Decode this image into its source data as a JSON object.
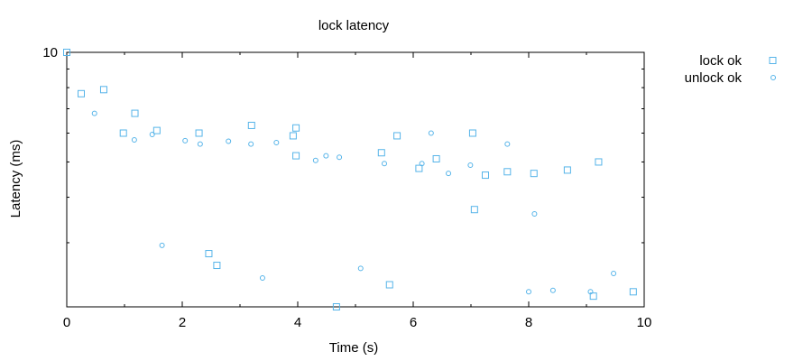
{
  "chart_data": {
    "type": "scatter",
    "title": "lock latency",
    "xlabel": "Time (s)",
    "ylabel": "Latency (ms)",
    "xlim": [
      0,
      10
    ],
    "ylim": [
      0,
      10
    ],
    "y_scale": "log",
    "grid": false,
    "legend_position": "top-right-outside",
    "x_ticks": [
      "0",
      "2",
      "4",
      "6",
      "8",
      "10"
    ],
    "y_ticks": [
      "10"
    ],
    "series": [
      {
        "name": "lock ok",
        "marker": "square",
        "color": "#56b4e9",
        "points": [
          [
            0.0,
            10.0
          ],
          [
            0.25,
            7.7
          ],
          [
            0.64,
            7.9
          ],
          [
            0.98,
            6.0
          ],
          [
            1.18,
            6.8
          ],
          [
            1.56,
            6.1
          ],
          [
            2.29,
            6.0
          ],
          [
            2.46,
            2.8
          ],
          [
            2.6,
            2.6
          ],
          [
            3.2,
            6.3
          ],
          [
            3.92,
            5.9
          ],
          [
            3.97,
            6.2
          ],
          [
            3.97,
            5.2
          ],
          [
            4.67,
            2.0
          ],
          [
            5.45,
            5.3
          ],
          [
            5.59,
            2.3
          ],
          [
            5.72,
            5.9
          ],
          [
            6.1,
            4.8
          ],
          [
            6.4,
            5.1
          ],
          [
            7.03,
            6.0
          ],
          [
            7.06,
            3.7
          ],
          [
            7.25,
            4.6
          ],
          [
            7.63,
            4.7
          ],
          [
            8.09,
            4.65
          ],
          [
            8.67,
            4.75
          ],
          [
            9.12,
            2.14
          ],
          [
            9.21,
            5.0
          ],
          [
            9.81,
            2.2
          ]
        ]
      },
      {
        "name": "unlock ok",
        "marker": "circle",
        "color": "#56b4e9",
        "points": [
          [
            0.48,
            6.8
          ],
          [
            1.17,
            5.75
          ],
          [
            1.48,
            5.95
          ],
          [
            1.65,
            2.95
          ],
          [
            2.05,
            5.72
          ],
          [
            2.31,
            5.6
          ],
          [
            2.8,
            5.7
          ],
          [
            3.19,
            5.6
          ],
          [
            3.39,
            2.4
          ],
          [
            3.63,
            5.65
          ],
          [
            4.31,
            5.05
          ],
          [
            4.49,
            5.2
          ],
          [
            4.72,
            5.15
          ],
          [
            5.09,
            2.55
          ],
          [
            5.5,
            4.95
          ],
          [
            6.15,
            4.95
          ],
          [
            6.31,
            6.0
          ],
          [
            6.61,
            4.65
          ],
          [
            6.99,
            4.9
          ],
          [
            7.63,
            5.6
          ],
          [
            8.0,
            2.2
          ],
          [
            8.1,
            3.6
          ],
          [
            8.42,
            2.22
          ],
          [
            9.07,
            2.2
          ],
          [
            9.47,
            2.47
          ]
        ]
      }
    ]
  }
}
